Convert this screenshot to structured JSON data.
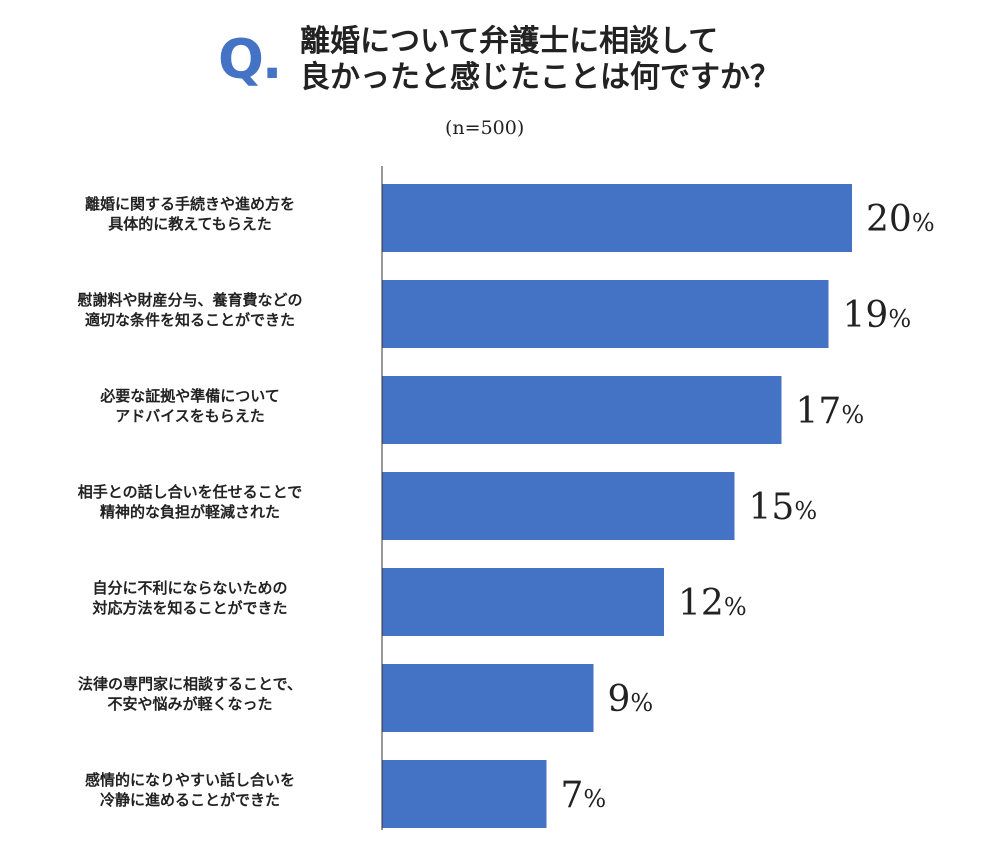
{
  "header": {
    "q_mark": "Q",
    "q_dot": ".",
    "title_line1": "離婚について弁護士に相談して",
    "title_line2": "良かったと感じたことは何ですか？",
    "sample_size": "(n=500)"
  },
  "colors": {
    "bar": "#4472c4",
    "accent": "#4472c4",
    "axis": "#333333",
    "text": "#222222"
  },
  "chart_data": {
    "type": "bar",
    "orientation": "horizontal",
    "categories": [
      [
        "離婚に関する手続きや進め方を",
        "具体的に教えてもらえた"
      ],
      [
        "慰謝料や財産分与、養育費などの",
        "適切な条件を知ることができた"
      ],
      [
        "必要な証拠や準備について",
        "アドバイスをもらえた"
      ],
      [
        "相手との話し合いを任せることで",
        "精神的な負担が軽減された"
      ],
      [
        "自分に不利にならないための",
        "対応方法を知ることができた"
      ],
      [
        "法律の専門家に相談することで、",
        "不安や悩みが軽くなった"
      ],
      [
        "感情的になりやすい話し合いを",
        "冷静に進めることができた"
      ]
    ],
    "values": [
      20,
      19,
      17,
      15,
      12,
      9,
      7
    ],
    "value_suffix": "%",
    "title": "離婚について弁護士に相談して良かったと感じたことは何ですか？",
    "xlabel": "",
    "ylabel": "",
    "xlim": [
      0,
      25
    ],
    "grid": false,
    "legend": "none"
  }
}
